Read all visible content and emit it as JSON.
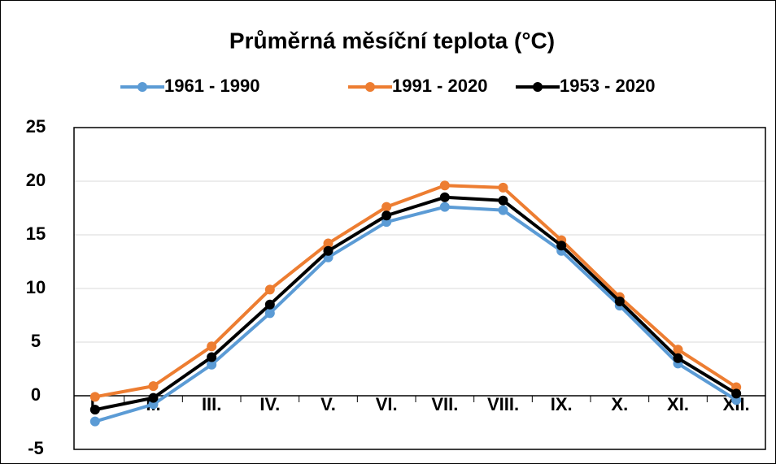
{
  "chart_data": {
    "type": "line",
    "title": "Průměrná měsíční teplota (°C)",
    "categories": [
      "I.",
      "II.",
      "III.",
      "IV.",
      "V.",
      "VI.",
      "VII.",
      "VIII.",
      "IX.",
      "X.",
      "XI.",
      "XII."
    ],
    "series": [
      {
        "name": "1961 - 1990",
        "color": "#5b9bd5",
        "values": [
          -2.4,
          -0.8,
          2.9,
          7.7,
          12.9,
          16.2,
          17.6,
          17.3,
          13.5,
          8.4,
          3.0,
          -0.4
        ]
      },
      {
        "name": "1991 - 2020",
        "color": "#ed7d31",
        "values": [
          -0.1,
          0.9,
          4.6,
          9.9,
          14.2,
          17.6,
          19.6,
          19.4,
          14.5,
          9.2,
          4.3,
          0.8
        ]
      },
      {
        "name": "1953 - 2020",
        "color": "#000000",
        "values": [
          -1.3,
          -0.2,
          3.6,
          8.5,
          13.5,
          16.8,
          18.5,
          18.2,
          14.0,
          8.8,
          3.5,
          0.2
        ]
      }
    ],
    "ylim": [
      -5,
      25
    ],
    "yticks": [
      -5,
      0,
      5,
      10,
      15,
      20,
      25
    ],
    "grid": true,
    "legend": "top"
  }
}
